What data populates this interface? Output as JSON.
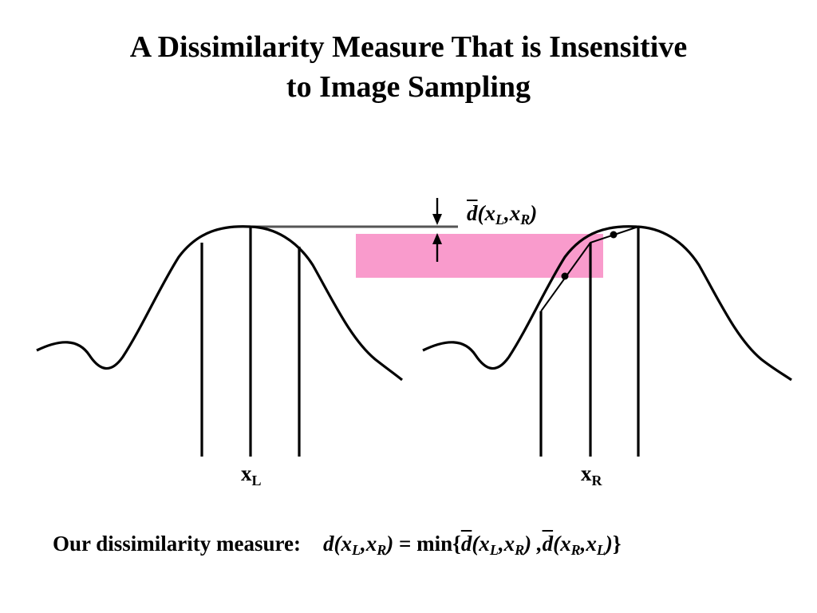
{
  "slide": {
    "title_line1": "A Dissimilarity Measure That is Insensitive",
    "title_line2": "to Image Sampling"
  },
  "figure": {
    "dbar_label": {
      "d": "d",
      "open": "(x",
      "sub1": "L",
      "comma": ",x",
      "sub2": "R",
      "close": ")"
    },
    "left_label": {
      "x": "x",
      "sub": "L"
    },
    "right_label": {
      "x": "x",
      "sub": "R"
    },
    "highlight_color": "#f99bcc",
    "curve_color": "#000000",
    "reference_line_color": "#555555"
  },
  "formula": {
    "caption": "Our dissimilarity measure:",
    "lhs_d": "d(x",
    "lhs_sub1": "L",
    "lhs_comma": ",x",
    "lhs_sub2": "R",
    "lhs_close": ")",
    "equals_min": " = min{",
    "t1_d": "d",
    "t1_open": "(x",
    "t1_sub1": "L",
    "t1_comma": ",x",
    "t1_sub2": "R",
    "t1_close": ") ,",
    "t2_d": "d",
    "t2_open": "(x",
    "t2_sub1": "R",
    "t2_comma": ",x",
    "t2_sub2": "L",
    "t2_close": ")",
    "brace_close": "}"
  }
}
